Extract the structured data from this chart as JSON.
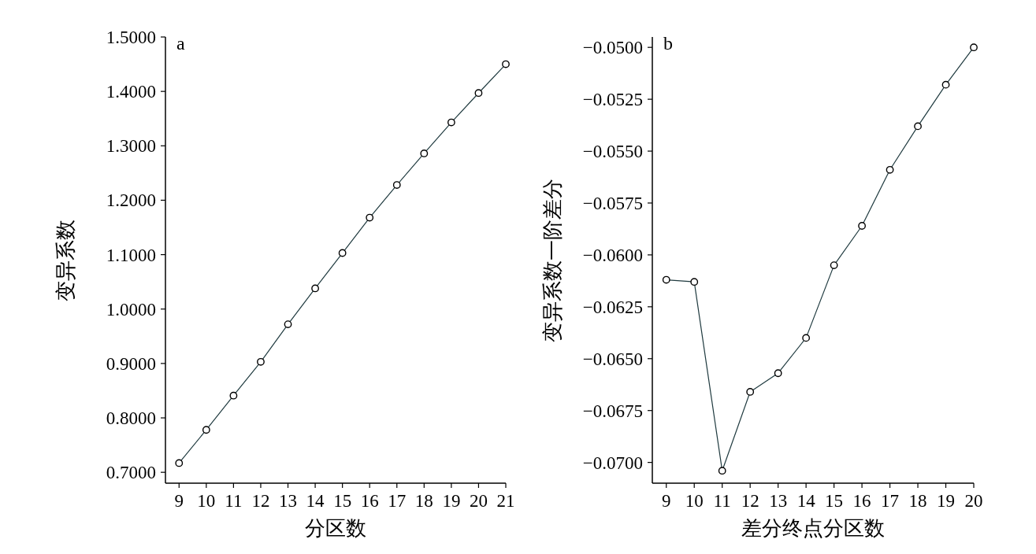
{
  "chart_data": [
    {
      "type": "line",
      "title": "a",
      "xlabel": "分区数",
      "ylabel": "变异系数",
      "x": [
        9,
        10,
        11,
        12,
        13,
        14,
        15,
        16,
        17,
        18,
        19,
        20,
        21
      ],
      "series": [
        {
          "color": "#1f3a3f",
          "values": [
            0.717,
            0.778,
            0.841,
            0.903,
            0.972,
            1.038,
            1.103,
            1.168,
            1.228,
            1.286,
            1.343,
            1.397,
            1.45
          ]
        }
      ],
      "marker": "circle",
      "xlim": [
        8.5,
        21
      ],
      "xticks": [
        9,
        10,
        11,
        12,
        13,
        14,
        15,
        16,
        17,
        18,
        19,
        20,
        21
      ],
      "ylim": [
        0.68,
        1.5
      ],
      "yticks": [
        {
          "value": 0.7,
          "label": "0.7000"
        },
        {
          "value": 0.8,
          "label": "0.8000"
        },
        {
          "value": 0.9,
          "label": "0.9000"
        },
        {
          "value": 1.0,
          "label": "1.0000"
        },
        {
          "value": 1.1,
          "label": "1.1000"
        },
        {
          "value": 1.2,
          "label": "1.2000"
        },
        {
          "value": 1.3,
          "label": "1.3000"
        },
        {
          "value": 1.4,
          "label": "1.4000"
        },
        {
          "value": 1.5,
          "label": "1.5000"
        }
      ]
    },
    {
      "type": "line",
      "title": "b",
      "xlabel": "差分终点分区数",
      "ylabel": "变异系数一阶差分",
      "x": [
        9,
        10,
        11,
        12,
        13,
        14,
        15,
        16,
        17,
        18,
        19,
        20
      ],
      "series": [
        {
          "color": "#1f3a3f",
          "values": [
            -0.0612,
            -0.0613,
            -0.0704,
            -0.0666,
            -0.0657,
            -0.064,
            -0.0605,
            -0.0586,
            -0.0559,
            -0.0538,
            -0.0518,
            -0.05
          ]
        }
      ],
      "marker": "circle",
      "xlim": [
        8.5,
        20
      ],
      "xticks": [
        9,
        10,
        11,
        12,
        13,
        14,
        15,
        16,
        17,
        18,
        19,
        20
      ],
      "ylim": [
        -0.071,
        -0.0495
      ],
      "yticks": [
        {
          "value": -0.07,
          "label": "−0.0700"
        },
        {
          "value": -0.0675,
          "label": "−0.0675"
        },
        {
          "value": -0.065,
          "label": "−0.0650"
        },
        {
          "value": -0.0625,
          "label": "−0.0625"
        },
        {
          "value": -0.06,
          "label": "−0.0600"
        },
        {
          "value": -0.0575,
          "label": "−0.0575"
        },
        {
          "value": -0.055,
          "label": "−0.0550"
        },
        {
          "value": -0.0525,
          "label": "−0.0525"
        },
        {
          "value": -0.05,
          "label": "−0.0500"
        }
      ]
    }
  ]
}
